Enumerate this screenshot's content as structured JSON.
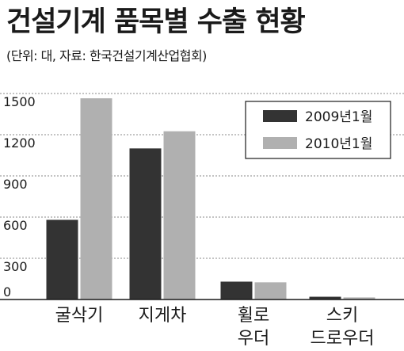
{
  "title": "건설기계 품목별 수출 현황",
  "note": "(단위: 대, 자료: 한국건설기계산업협회)",
  "chart_data": {
    "type": "bar",
    "title": "건설기계 품목별 수출 현황",
    "xlabel": "",
    "ylabel": "",
    "categories": [
      [
        "굴삭기"
      ],
      [
        "지게차"
      ],
      [
        "휠로",
        "우더"
      ],
      [
        "스키",
        "드로우더"
      ]
    ],
    "series": [
      {
        "name": "2009년1월",
        "values": [
          580,
          1100,
          130,
          20
        ],
        "color": "#333333"
      },
      {
        "name": "2010년1월",
        "values": [
          1465,
          1225,
          125,
          15
        ],
        "color": "#b0b0b0"
      }
    ],
    "yticks": [
      0,
      300,
      600,
      900,
      1200,
      1500
    ],
    "ylim": [
      0,
      1500
    ],
    "grid": true,
    "legend_position": "top-right"
  }
}
